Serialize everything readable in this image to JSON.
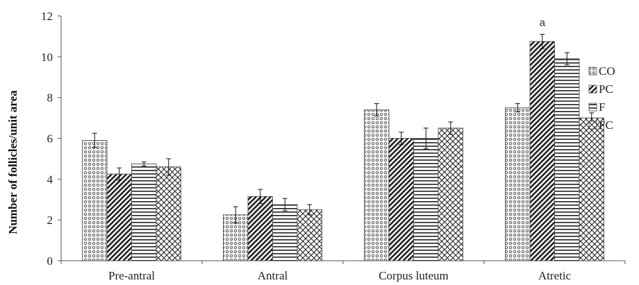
{
  "chart_data": {
    "type": "bar",
    "title": "",
    "xlabel": "",
    "ylabel": "Number of follicles/unit area",
    "ylim": [
      0,
      12
    ],
    "yticks": [
      0,
      2,
      4,
      6,
      8,
      10,
      12
    ],
    "categories": [
      "Pre-antral",
      "Antral",
      "Corpus luteum",
      "Atretic"
    ],
    "series": [
      {
        "name": "CO",
        "pattern": "dots",
        "values": [
          5.9,
          2.25,
          7.4,
          7.5
        ],
        "errors": [
          0.35,
          0.4,
          0.3,
          0.2
        ]
      },
      {
        "name": "PC",
        "pattern": "diagonal",
        "values": [
          4.25,
          3.15,
          6.0,
          10.75
        ],
        "errors": [
          0.3,
          0.35,
          0.3,
          0.35
        ]
      },
      {
        "name": "F",
        "pattern": "horizontal",
        "values": [
          4.75,
          2.75,
          6.0,
          9.9
        ],
        "errors": [
          0.1,
          0.3,
          0.5,
          0.3
        ]
      },
      {
        "name": "FC",
        "pattern": "crosshatch",
        "values": [
          4.6,
          2.5,
          6.5,
          7.0
        ],
        "errors": [
          0.4,
          0.25,
          0.3,
          0.25
        ]
      }
    ],
    "annotations": [
      {
        "text": "a",
        "category": "Atretic",
        "series": "PC"
      }
    ],
    "grid": false,
    "legend": "right"
  }
}
